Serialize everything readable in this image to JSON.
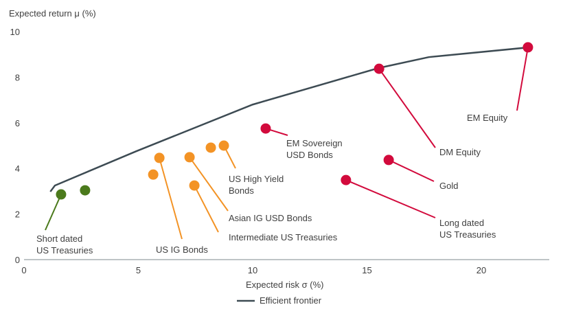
{
  "chart_data": {
    "type": "scatter",
    "title": "",
    "xlabel": "Expected risk σ (%)",
    "ylabel": "Expected return μ (%)",
    "xlim": [
      0,
      23
    ],
    "ylim": [
      0,
      10
    ],
    "xticks": [
      "0",
      "5",
      "10",
      "15",
      "20"
    ],
    "yticks": [
      "0",
      "2",
      "4",
      "6",
      "8",
      "10"
    ],
    "grid": false,
    "legend": {
      "position": "bottom",
      "entries": [
        "Efficient frontier"
      ]
    },
    "colors": {
      "frontier": "#3d4b53",
      "cash": "#4b7a1c",
      "bonds": "#f39325",
      "risk": "#d20a3c"
    },
    "frontier": {
      "name": "Efficient frontier",
      "x": [
        1.15,
        1.35,
        4.9,
        10.0,
        15.5,
        17.7,
        22.0
      ],
      "y": [
        2.98,
        3.25,
        4.75,
        6.8,
        8.4,
        8.88,
        9.3
      ]
    },
    "points": [
      {
        "group": "cash",
        "x": 1.62,
        "y": 2.86,
        "label": [
          "Short dated",
          "US Treasuries"
        ]
      },
      {
        "group": "cash",
        "x": 2.67,
        "y": 3.04,
        "label": []
      },
      {
        "group": "bonds",
        "x": 5.65,
        "y": 3.73,
        "label": []
      },
      {
        "group": "bonds",
        "x": 5.92,
        "y": 4.46,
        "label": [
          "US IG Bonds"
        ]
      },
      {
        "group": "bonds",
        "x": 7.24,
        "y": 4.49,
        "label": [
          "Asian IG USD Bonds"
        ]
      },
      {
        "group": "bonds",
        "x": 7.45,
        "y": 3.25,
        "label": [
          "Intermediate US Treasuries"
        ]
      },
      {
        "group": "bonds",
        "x": 8.17,
        "y": 4.91,
        "label": []
      },
      {
        "group": "bonds",
        "x": 8.74,
        "y": 5.0,
        "label": [
          "US High Yield",
          "Bonds"
        ]
      },
      {
        "group": "risk",
        "x": 10.57,
        "y": 5.75,
        "label": [
          "EM Sovereign",
          "USD Bonds"
        ]
      },
      {
        "group": "risk",
        "x": 14.08,
        "y": 3.49,
        "label": [
          "Long dated",
          "US Treasuries"
        ]
      },
      {
        "group": "risk",
        "x": 15.95,
        "y": 4.37,
        "label": [
          "Gold"
        ]
      },
      {
        "group": "risk",
        "x": 15.53,
        "y": 8.37,
        "label": [
          "DM Equity"
        ]
      },
      {
        "group": "risk",
        "x": 22.04,
        "y": 9.31,
        "label": [
          "EM Equity"
        ]
      }
    ]
  }
}
